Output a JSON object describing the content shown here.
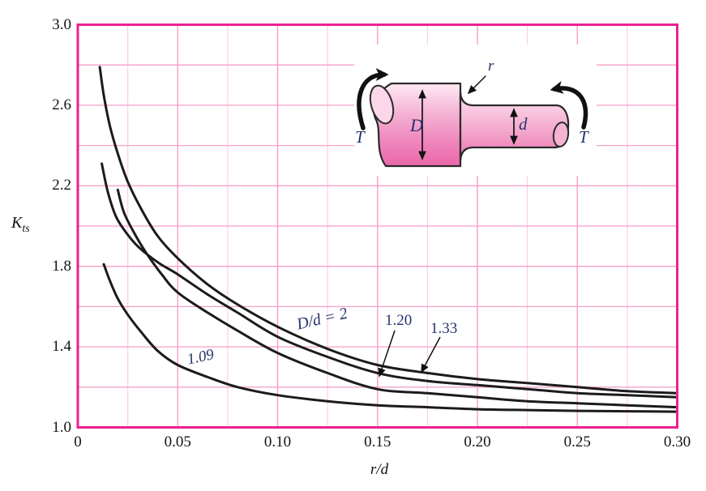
{
  "figure": {
    "y_axis": {
      "label_main": "K",
      "label_sub": "ts",
      "ticks": [
        "3.0",
        "2.6",
        "2.2",
        "1.8",
        "1.4",
        "1.0"
      ],
      "tick_values": [
        3.0,
        2.6,
        2.2,
        1.8,
        1.4,
        1.0
      ]
    },
    "x_axis": {
      "label": "r/d",
      "ticks": [
        "0",
        "0.05",
        "0.10",
        "0.15",
        "0.20",
        "0.25",
        "0.30"
      ],
      "tick_values": [
        0,
        0.05,
        0.1,
        0.15,
        0.2,
        0.25,
        0.3
      ]
    }
  },
  "curve_labels": {
    "dd2": "D/d = 2",
    "r120": "1.20",
    "r133": "1.33",
    "r109": "1.09"
  },
  "inset": {
    "t_left": "T",
    "t_right": "T",
    "big_dia": "D",
    "small_dia": "d",
    "fillet": "r"
  },
  "colors": {
    "border": "#ec2190",
    "grid_major": "#f79fc9",
    "grid_minor": "#fdd0e3",
    "curve": "#1b1b1b",
    "annotation_text": "#27336b",
    "tick_text": "#141414",
    "shaft_top": "#fdeaf4",
    "shaft_mid": "#f4aed2",
    "shaft_bottom": "#ea67a8"
  },
  "chart_data": {
    "type": "line",
    "title": "",
    "xlabel": "r/d",
    "ylabel": "Kts",
    "xlim": [
      0,
      0.3
    ],
    "ylim": [
      1.0,
      3.0
    ],
    "grid": {
      "x_major_step": 0.05,
      "x_minor_step": 0.025,
      "y_step": 0.2
    },
    "legend_position": "inline-annotations",
    "series": [
      {
        "name": "D/d = 2",
        "points": [
          [
            0.011,
            2.79
          ],
          [
            0.013,
            2.65
          ],
          [
            0.016,
            2.5
          ],
          [
            0.02,
            2.36
          ],
          [
            0.025,
            2.22
          ],
          [
            0.032,
            2.08
          ],
          [
            0.04,
            1.95
          ],
          [
            0.05,
            1.84
          ],
          [
            0.065,
            1.71
          ],
          [
            0.08,
            1.61
          ],
          [
            0.1,
            1.5
          ],
          [
            0.125,
            1.39
          ],
          [
            0.15,
            1.31
          ],
          [
            0.175,
            1.27
          ],
          [
            0.2,
            1.24
          ],
          [
            0.225,
            1.22
          ],
          [
            0.25,
            1.2
          ],
          [
            0.275,
            1.18
          ],
          [
            0.3,
            1.17
          ]
        ]
      },
      {
        "name": "D/d = 1.33",
        "points": [
          [
            0.012,
            2.31
          ],
          [
            0.015,
            2.17
          ],
          [
            0.019,
            2.05
          ],
          [
            0.024,
            1.97
          ],
          [
            0.03,
            1.9
          ],
          [
            0.04,
            1.82
          ],
          [
            0.05,
            1.76
          ],
          [
            0.065,
            1.66
          ],
          [
            0.08,
            1.57
          ],
          [
            0.1,
            1.45
          ],
          [
            0.125,
            1.35
          ],
          [
            0.15,
            1.27
          ],
          [
            0.175,
            1.23
          ],
          [
            0.2,
            1.21
          ],
          [
            0.225,
            1.19
          ],
          [
            0.25,
            1.17
          ],
          [
            0.275,
            1.16
          ],
          [
            0.3,
            1.15
          ]
        ]
      },
      {
        "name": "D/d = 1.20",
        "points": [
          [
            0.02,
            2.18
          ],
          [
            0.023,
            2.07
          ],
          [
            0.028,
            1.97
          ],
          [
            0.034,
            1.87
          ],
          [
            0.042,
            1.76
          ],
          [
            0.05,
            1.67
          ],
          [
            0.065,
            1.57
          ],
          [
            0.08,
            1.48
          ],
          [
            0.1,
            1.37
          ],
          [
            0.125,
            1.27
          ],
          [
            0.15,
            1.19
          ],
          [
            0.175,
            1.17
          ],
          [
            0.2,
            1.15
          ],
          [
            0.225,
            1.13
          ],
          [
            0.25,
            1.12
          ],
          [
            0.275,
            1.11
          ],
          [
            0.3,
            1.1
          ]
        ]
      },
      {
        "name": "D/d = 1.09",
        "points": [
          [
            0.013,
            1.81
          ],
          [
            0.016,
            1.73
          ],
          [
            0.02,
            1.64
          ],
          [
            0.025,
            1.56
          ],
          [
            0.032,
            1.47
          ],
          [
            0.04,
            1.38
          ],
          [
            0.05,
            1.31
          ],
          [
            0.065,
            1.25
          ],
          [
            0.08,
            1.2
          ],
          [
            0.1,
            1.16
          ],
          [
            0.125,
            1.13
          ],
          [
            0.15,
            1.11
          ],
          [
            0.175,
            1.1
          ],
          [
            0.2,
            1.09
          ],
          [
            0.225,
            1.086
          ],
          [
            0.25,
            1.082
          ],
          [
            0.275,
            1.08
          ],
          [
            0.3,
            1.078
          ]
        ]
      }
    ]
  }
}
